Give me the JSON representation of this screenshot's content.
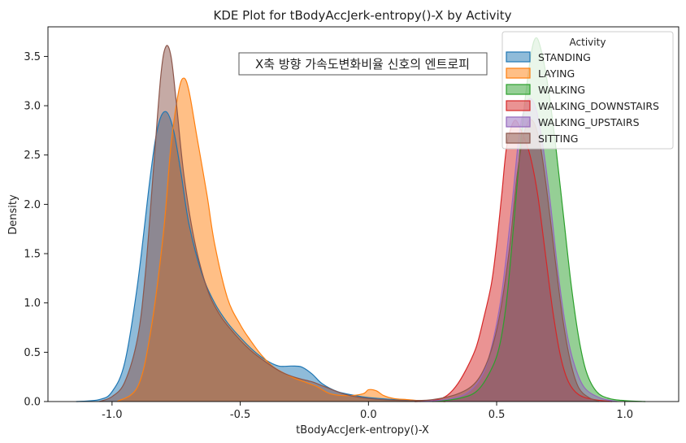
{
  "chart_data": {
    "type": "area",
    "title": "KDE Plot for tBodyAccJerk-entropy()-X by Activity",
    "xlabel": "tBodyAccJerk-entropy()-X",
    "ylabel": "Density",
    "xlim": [
      -1.25,
      1.21
    ],
    "ylim": [
      0,
      3.8
    ],
    "xticks": [
      -1.0,
      -0.5,
      0.0,
      0.5,
      1.0
    ],
    "xtick_labels": [
      "-1.0",
      "-0.5",
      "0.0",
      "0.5",
      "1.0"
    ],
    "yticks": [
      0.0,
      0.5,
      1.0,
      1.5,
      2.0,
      2.5,
      3.0,
      3.5
    ],
    "ytick_labels": [
      "0.0",
      "0.5",
      "1.0",
      "1.5",
      "2.0",
      "2.5",
      "3.0",
      "3.5"
    ],
    "grid": false,
    "annotation": "X축 방향 가속도변화비율 신호의 엔트로피",
    "legend": {
      "title": "Activity",
      "placement": "top-right",
      "entries": [
        "STANDING",
        "LAYING",
        "WALKING",
        "WALKING_DOWNSTAIRS",
        "WALKING_UPSTAIRS",
        "SITTING"
      ]
    },
    "series": [
      {
        "name": "STANDING",
        "color": "#1f77b4",
        "points": [
          [
            -1.14,
            0
          ],
          [
            -1.05,
            0.02
          ],
          [
            -1.0,
            0.1
          ],
          [
            -0.95,
            0.4
          ],
          [
            -0.9,
            1.2
          ],
          [
            -0.85,
            2.3
          ],
          [
            -0.82,
            2.8
          ],
          [
            -0.79,
            2.94
          ],
          [
            -0.76,
            2.75
          ],
          [
            -0.73,
            2.3
          ],
          [
            -0.7,
            1.8
          ],
          [
            -0.65,
            1.3
          ],
          [
            -0.6,
            1.0
          ],
          [
            -0.55,
            0.8
          ],
          [
            -0.5,
            0.65
          ],
          [
            -0.45,
            0.52
          ],
          [
            -0.4,
            0.42
          ],
          [
            -0.35,
            0.36
          ],
          [
            -0.3,
            0.36
          ],
          [
            -0.26,
            0.35
          ],
          [
            -0.22,
            0.28
          ],
          [
            -0.18,
            0.18
          ],
          [
            -0.12,
            0.1
          ],
          [
            -0.05,
            0.06
          ],
          [
            0.0,
            0.04
          ],
          [
            0.1,
            0.02
          ],
          [
            0.2,
            0.01
          ],
          [
            0.3,
            0.0
          ]
        ]
      },
      {
        "name": "LAYING",
        "color": "#ff7f0e",
        "points": [
          [
            -0.98,
            0
          ],
          [
            -0.9,
            0.15
          ],
          [
            -0.85,
            0.7
          ],
          [
            -0.8,
            1.7
          ],
          [
            -0.77,
            2.6
          ],
          [
            -0.74,
            3.15
          ],
          [
            -0.72,
            3.28
          ],
          [
            -0.7,
            3.15
          ],
          [
            -0.67,
            2.7
          ],
          [
            -0.63,
            2.1
          ],
          [
            -0.6,
            1.6
          ],
          [
            -0.55,
            1.05
          ],
          [
            -0.5,
            0.78
          ],
          [
            -0.46,
            0.62
          ],
          [
            -0.42,
            0.48
          ],
          [
            -0.37,
            0.35
          ],
          [
            -0.3,
            0.25
          ],
          [
            -0.25,
            0.2
          ],
          [
            -0.2,
            0.15
          ],
          [
            -0.15,
            0.08
          ],
          [
            -0.08,
            0.06
          ],
          [
            -0.02,
            0.08
          ],
          [
            0.0,
            0.12
          ],
          [
            0.03,
            0.11
          ],
          [
            0.06,
            0.06
          ],
          [
            0.1,
            0.03
          ],
          [
            0.15,
            0.02
          ],
          [
            0.2,
            0.01
          ],
          [
            0.3,
            0.0
          ]
        ]
      },
      {
        "name": "WALKING",
        "color": "#2ca02c",
        "points": [
          [
            0.25,
            0
          ],
          [
            0.35,
            0.03
          ],
          [
            0.42,
            0.1
          ],
          [
            0.47,
            0.28
          ],
          [
            0.51,
            0.55
          ],
          [
            0.54,
            1.05
          ],
          [
            0.57,
            1.9
          ],
          [
            0.6,
            2.8
          ],
          [
            0.63,
            3.45
          ],
          [
            0.65,
            3.68
          ],
          [
            0.67,
            3.6
          ],
          [
            0.7,
            3.2
          ],
          [
            0.73,
            2.6
          ],
          [
            0.76,
            1.9
          ],
          [
            0.79,
            1.2
          ],
          [
            0.82,
            0.65
          ],
          [
            0.85,
            0.3
          ],
          [
            0.89,
            0.1
          ],
          [
            0.94,
            0.03
          ],
          [
            1.0,
            0.01
          ],
          [
            1.08,
            0.0
          ]
        ]
      },
      {
        "name": "WALKING_DOWNSTAIRS",
        "color": "#d62728",
        "points": [
          [
            0.18,
            0
          ],
          [
            0.25,
            0.01
          ],
          [
            0.3,
            0.05
          ],
          [
            0.34,
            0.15
          ],
          [
            0.38,
            0.32
          ],
          [
            0.42,
            0.55
          ],
          [
            0.45,
            0.85
          ],
          [
            0.48,
            1.2
          ],
          [
            0.5,
            1.6
          ],
          [
            0.52,
            2.1
          ],
          [
            0.54,
            2.6
          ],
          [
            0.57,
            2.85
          ],
          [
            0.6,
            2.72
          ],
          [
            0.63,
            2.5
          ],
          [
            0.66,
            2.1
          ],
          [
            0.69,
            1.5
          ],
          [
            0.72,
            0.9
          ],
          [
            0.75,
            0.45
          ],
          [
            0.78,
            0.2
          ],
          [
            0.82,
            0.07
          ],
          [
            0.88,
            0.02
          ],
          [
            0.95,
            0.0
          ]
        ]
      },
      {
        "name": "WALKING_UPSTAIRS",
        "color": "#9467bd",
        "points": [
          [
            0.2,
            0
          ],
          [
            0.3,
            0.02
          ],
          [
            0.38,
            0.08
          ],
          [
            0.44,
            0.25
          ],
          [
            0.48,
            0.55
          ],
          [
            0.52,
            1.1
          ],
          [
            0.56,
            2.0
          ],
          [
            0.59,
            2.75
          ],
          [
            0.62,
            3.05
          ],
          [
            0.65,
            3.0
          ],
          [
            0.68,
            2.6
          ],
          [
            0.71,
            2.0
          ],
          [
            0.74,
            1.3
          ],
          [
            0.77,
            0.75
          ],
          [
            0.8,
            0.4
          ],
          [
            0.84,
            0.15
          ],
          [
            0.9,
            0.04
          ],
          [
            0.97,
            0.0
          ]
        ]
      },
      {
        "name": "SITTING",
        "color": "#8c564b",
        "points": [
          [
            -1.05,
            0
          ],
          [
            -1.0,
            0.05
          ],
          [
            -0.95,
            0.2
          ],
          [
            -0.9,
            0.65
          ],
          [
            -0.87,
            1.3
          ],
          [
            -0.84,
            2.3
          ],
          [
            -0.81,
            3.3
          ],
          [
            -0.79,
            3.6
          ],
          [
            -0.77,
            3.5
          ],
          [
            -0.75,
            3.05
          ],
          [
            -0.72,
            2.3
          ],
          [
            -0.68,
            1.65
          ],
          [
            -0.63,
            1.15
          ],
          [
            -0.58,
            0.88
          ],
          [
            -0.52,
            0.68
          ],
          [
            -0.46,
            0.52
          ],
          [
            -0.4,
            0.4
          ],
          [
            -0.34,
            0.3
          ],
          [
            -0.28,
            0.24
          ],
          [
            -0.22,
            0.2
          ],
          [
            -0.17,
            0.15
          ],
          [
            -0.1,
            0.08
          ],
          [
            -0.03,
            0.04
          ],
          [
            0.05,
            0.02
          ],
          [
            0.15,
            0.01
          ],
          [
            0.25,
            0.02
          ],
          [
            0.35,
            0.08
          ],
          [
            0.42,
            0.2
          ],
          [
            0.47,
            0.45
          ],
          [
            0.51,
            0.85
          ],
          [
            0.55,
            1.55
          ],
          [
            0.58,
            2.3
          ],
          [
            0.61,
            2.75
          ],
          [
            0.64,
            2.85
          ],
          [
            0.67,
            2.6
          ],
          [
            0.7,
            2.05
          ],
          [
            0.73,
            1.4
          ],
          [
            0.76,
            0.8
          ],
          [
            0.79,
            0.38
          ],
          [
            0.82,
            0.14
          ],
          [
            0.86,
            0.04
          ],
          [
            0.9,
            0.0
          ]
        ]
      }
    ]
  }
}
